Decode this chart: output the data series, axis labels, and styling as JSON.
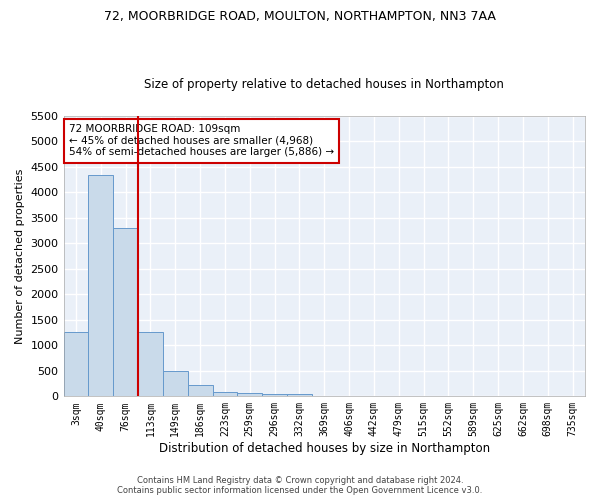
{
  "title_line1": "72, MOORBRIDGE ROAD, MOULTON, NORTHAMPTON, NN3 7AA",
  "title_line2": "Size of property relative to detached houses in Northampton",
  "xlabel": "Distribution of detached houses by size in Northampton",
  "ylabel": "Number of detached properties",
  "bar_color": "#c9daea",
  "bar_edge_color": "#6699cc",
  "annotation_line_color": "#cc0000",
  "annotation_box_color": "#cc0000",
  "background_color": "#eaf0f8",
  "grid_color": "#ffffff",
  "footer_line1": "Contains HM Land Registry data © Crown copyright and database right 2024.",
  "footer_line2": "Contains public sector information licensed under the Open Government Licence v3.0.",
  "annotation_text": "72 MOORBRIDGE ROAD: 109sqm\n← 45% of detached houses are smaller (4,968)\n54% of semi-detached houses are larger (5,886) →",
  "property_size_bin": 3,
  "categories": [
    "3sqm",
    "40sqm",
    "76sqm",
    "113sqm",
    "149sqm",
    "186sqm",
    "223sqm",
    "259sqm",
    "296sqm",
    "332sqm",
    "369sqm",
    "406sqm",
    "442sqm",
    "479sqm",
    "515sqm",
    "552sqm",
    "589sqm",
    "625sqm",
    "662sqm",
    "698sqm",
    "735sqm"
  ],
  "bar_heights": [
    1260,
    4330,
    3300,
    1270,
    490,
    215,
    90,
    70,
    55,
    50,
    0,
    0,
    0,
    0,
    0,
    0,
    0,
    0,
    0,
    0,
    0
  ],
  "ylim": [
    0,
    5500
  ],
  "yticks": [
    0,
    500,
    1000,
    1500,
    2000,
    2500,
    3000,
    3500,
    4000,
    4500,
    5000,
    5500
  ]
}
